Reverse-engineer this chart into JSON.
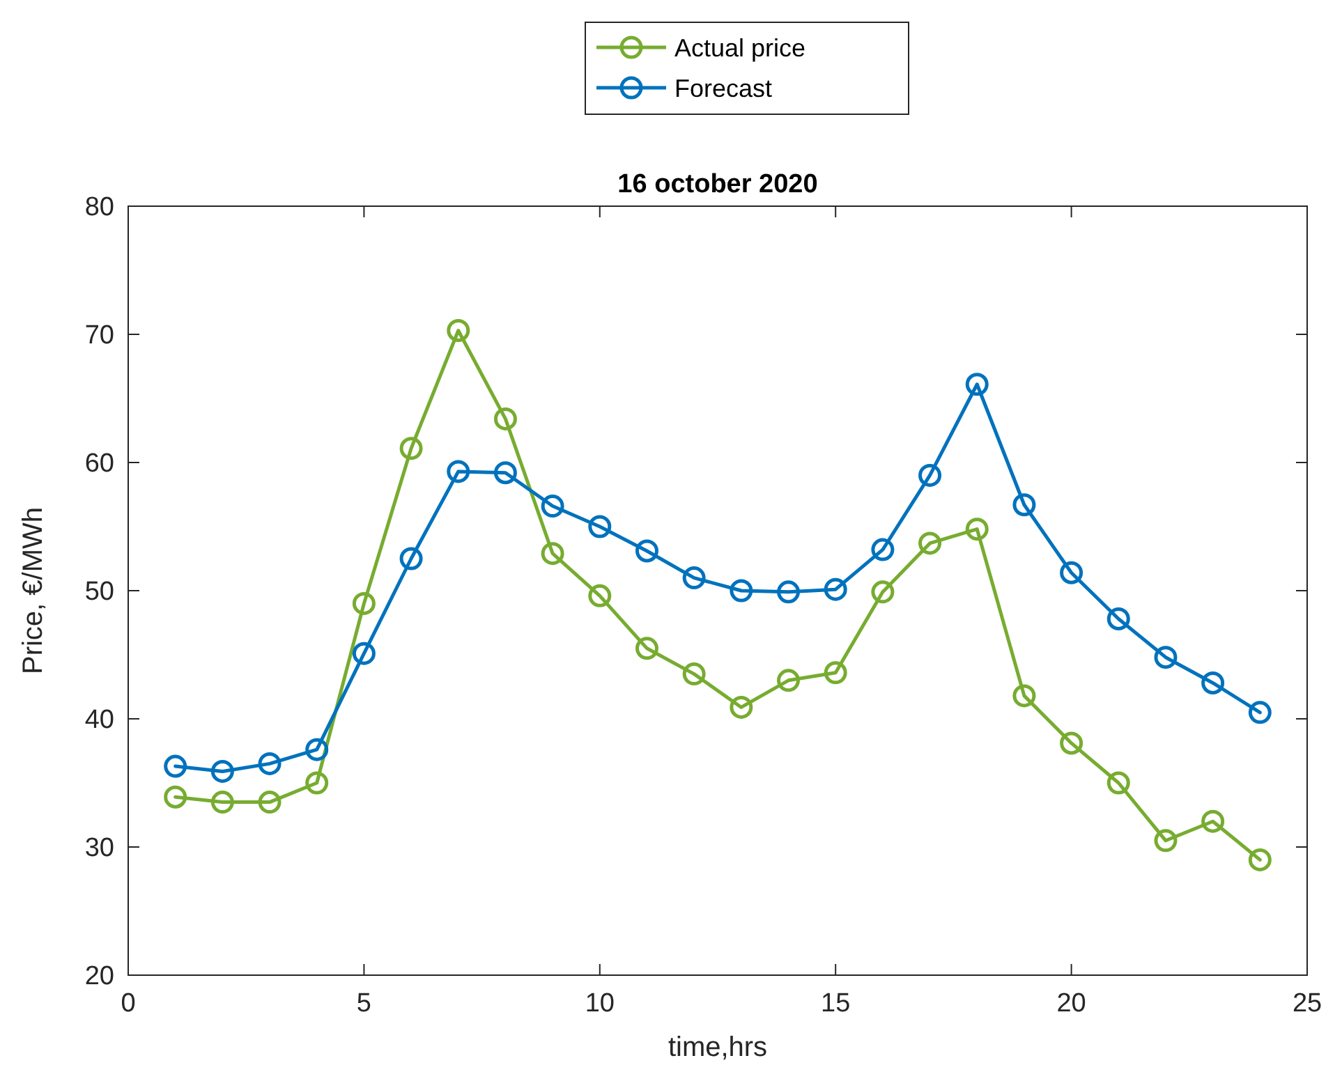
{
  "chart_data": {
    "type": "line",
    "title": "16 october 2020",
    "xlabel": "time,hrs",
    "ylabel": "Price, €/MWh",
    "x": [
      1,
      2,
      3,
      4,
      5,
      6,
      7,
      8,
      9,
      10,
      11,
      12,
      13,
      14,
      15,
      16,
      17,
      18,
      19,
      20,
      21,
      22,
      23,
      24
    ],
    "series": [
      {
        "name": "Actual price",
        "color": "#77ac30",
        "values": [
          33.9,
          33.5,
          33.5,
          35.0,
          49.0,
          61.1,
          70.3,
          63.4,
          52.9,
          49.6,
          45.5,
          43.5,
          40.9,
          43.0,
          43.6,
          49.9,
          53.7,
          54.8,
          41.8,
          38.1,
          35.0,
          30.5,
          32.0,
          29.0
        ]
      },
      {
        "name": "Forecast",
        "color": "#0072bd",
        "values": [
          36.3,
          35.9,
          36.5,
          37.6,
          45.1,
          52.5,
          59.3,
          59.2,
          56.6,
          55.0,
          53.1,
          51.0,
          50.0,
          49.9,
          50.1,
          53.2,
          59.0,
          66.1,
          56.7,
          51.4,
          47.8,
          44.8,
          42.8,
          40.5
        ]
      }
    ],
    "xlim": [
      0,
      25
    ],
    "xticks": [
      0,
      5,
      10,
      15,
      20,
      25
    ],
    "ylim": [
      20,
      80
    ],
    "yticks": [
      20,
      30,
      40,
      50,
      60,
      70,
      80
    ],
    "grid": false,
    "legend": "top",
    "marker": "circle",
    "line_style": "solid"
  }
}
